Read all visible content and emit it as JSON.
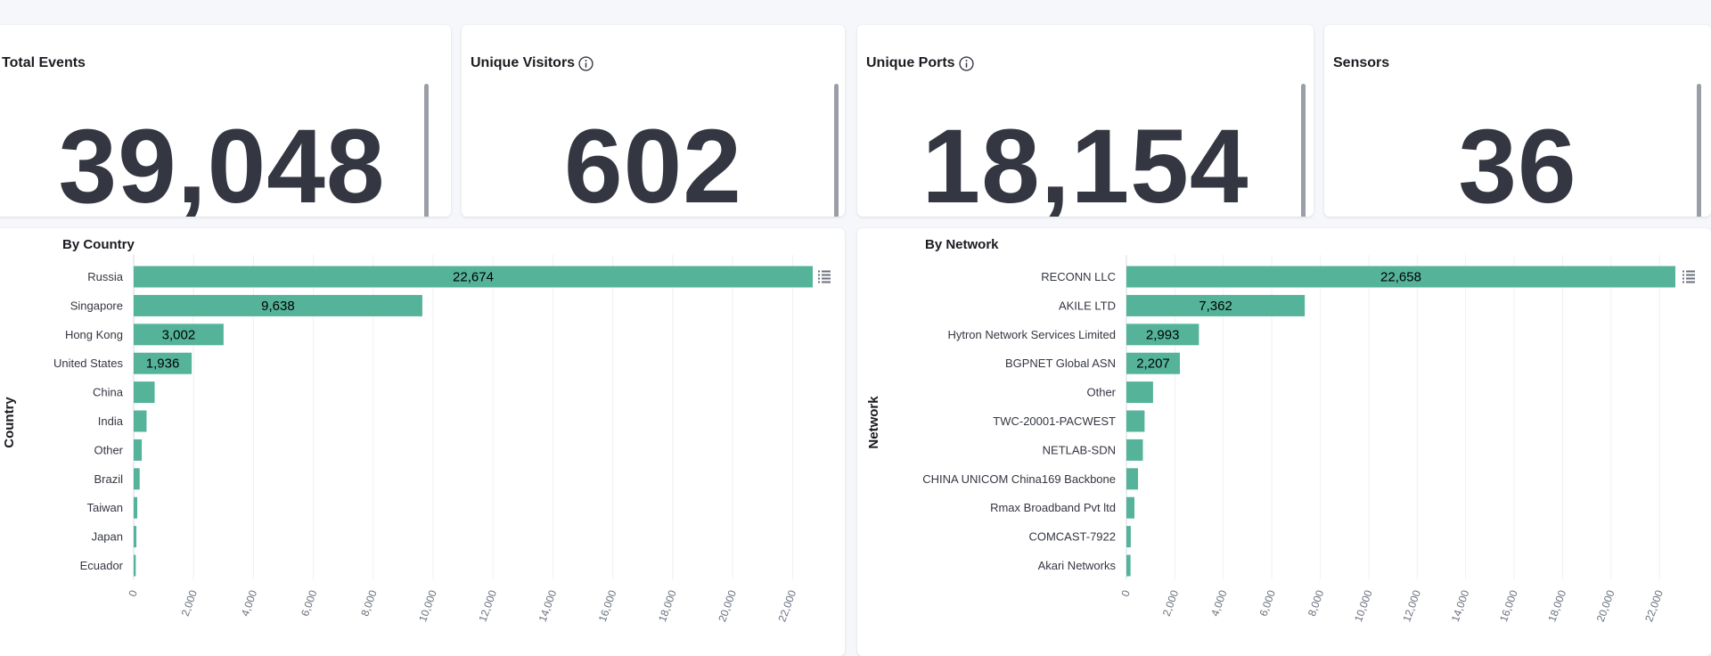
{
  "metrics": [
    {
      "title": "Total Events",
      "value": "39,048",
      "info": false
    },
    {
      "title": "Unique Visitors",
      "value": "602",
      "info": true
    },
    {
      "title": "Unique Ports",
      "value": "18,154",
      "info": true
    },
    {
      "title": "Sensors",
      "value": "36",
      "info": false
    }
  ],
  "colors": {
    "bar": "#54b399",
    "grid": "#eef0f3",
    "text": "#343741"
  },
  "chart_data": [
    {
      "type": "bar",
      "orientation": "horizontal",
      "title": "By Country",
      "ylabel": "Country",
      "xlabel": "",
      "xlim": [
        0,
        22674
      ],
      "xticks": [
        "0",
        "2,000",
        "4,000",
        "6,000",
        "8,000",
        "10,000",
        "12,000",
        "14,000",
        "16,000",
        "18,000",
        "20,000",
        "22,000"
      ],
      "categories": [
        "Russia",
        "Singapore",
        "Hong Kong",
        "United States",
        "China",
        "India",
        "Other",
        "Brazil",
        "Taiwan",
        "Japan",
        "Ecuador"
      ],
      "values": [
        22674,
        9638,
        3002,
        1936,
        700,
        430,
        270,
        200,
        120,
        90,
        70
      ],
      "value_labels": [
        "22,674",
        "9,638",
        "3,002",
        "1,936",
        "",
        "",
        "",
        "",
        "",
        "",
        ""
      ]
    },
    {
      "type": "bar",
      "orientation": "horizontal",
      "title": "By Network",
      "ylabel": "Network",
      "xlabel": "",
      "xlim": [
        0,
        22658
      ],
      "xticks": [
        "0",
        "2,000",
        "4,000",
        "6,000",
        "8,000",
        "10,000",
        "12,000",
        "14,000",
        "16,000",
        "18,000",
        "20,000",
        "22,000"
      ],
      "categories": [
        "RECONN LLC",
        "AKILE LTD",
        "Hytron Network Services Limited",
        "BGPNET Global ASN",
        "Other",
        "TWC-20001-PACWEST",
        "NETLAB-SDN",
        "CHINA UNICOM China169 Backbone",
        "Rmax Broadband Pvt ltd",
        "COMCAST-7922",
        "Akari Networks"
      ],
      "values": [
        22658,
        7362,
        2993,
        2207,
        1100,
        750,
        680,
        480,
        330,
        180,
        170
      ],
      "value_labels": [
        "22,658",
        "7,362",
        "2,993",
        "2,207",
        "",
        "",
        "",
        "",
        "",
        "",
        ""
      ]
    }
  ]
}
